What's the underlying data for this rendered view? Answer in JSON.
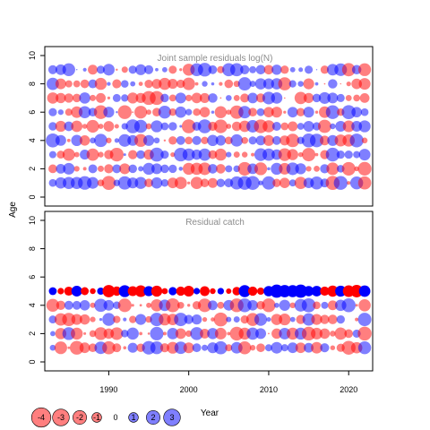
{
  "chart_data": [
    {
      "type": "scatter",
      "title": "Joint sample residuals log(N)",
      "ylabel": "Age",
      "xlim": [
        1982,
        2023
      ],
      "ylim": [
        0,
        10
      ],
      "x_ticks": [
        1990,
        2000,
        2010,
        2020
      ],
      "y_ticks": [
        0,
        2,
        4,
        6,
        8,
        10
      ],
      "years": [
        1983,
        2022
      ],
      "ages": [
        1,
        2,
        3,
        4,
        5,
        6,
        7,
        8,
        9
      ],
      "encoding": "bubble area ~ |residual|; red = negative, blue = positive; semi-transparent",
      "positive_color": "#0000ff",
      "negative_color": "#ff0000",
      "fill_opacity": 0.5
    },
    {
      "type": "scatter",
      "title": "Residual catch",
      "xlabel": "Year",
      "xlim": [
        1982,
        2023
      ],
      "ylim": [
        0,
        10
      ],
      "x_ticks": [
        1990,
        2000,
        2010,
        2020
      ],
      "y_ticks": [
        0,
        2,
        4,
        6,
        8,
        10
      ],
      "years": [
        1983,
        2022
      ],
      "ages": [
        1,
        2,
        3,
        4,
        5
      ],
      "encoding": "bubble area ~ |residual|; red = negative, blue = positive; age 5 opaque, ages 1-4 semi-transparent",
      "positive_color": "#0000ff",
      "negative_color": "#ff0000",
      "fill_opacity": 0.5
    }
  ],
  "legend": {
    "labels": [
      "-4",
      "-3",
      "-2",
      "-1",
      "0",
      "1",
      "2",
      "3"
    ],
    "values": [
      -4,
      -3,
      -2,
      -1,
      0,
      1,
      2,
      3
    ]
  },
  "shared_axis_label": "Age",
  "xlabel": "Year"
}
